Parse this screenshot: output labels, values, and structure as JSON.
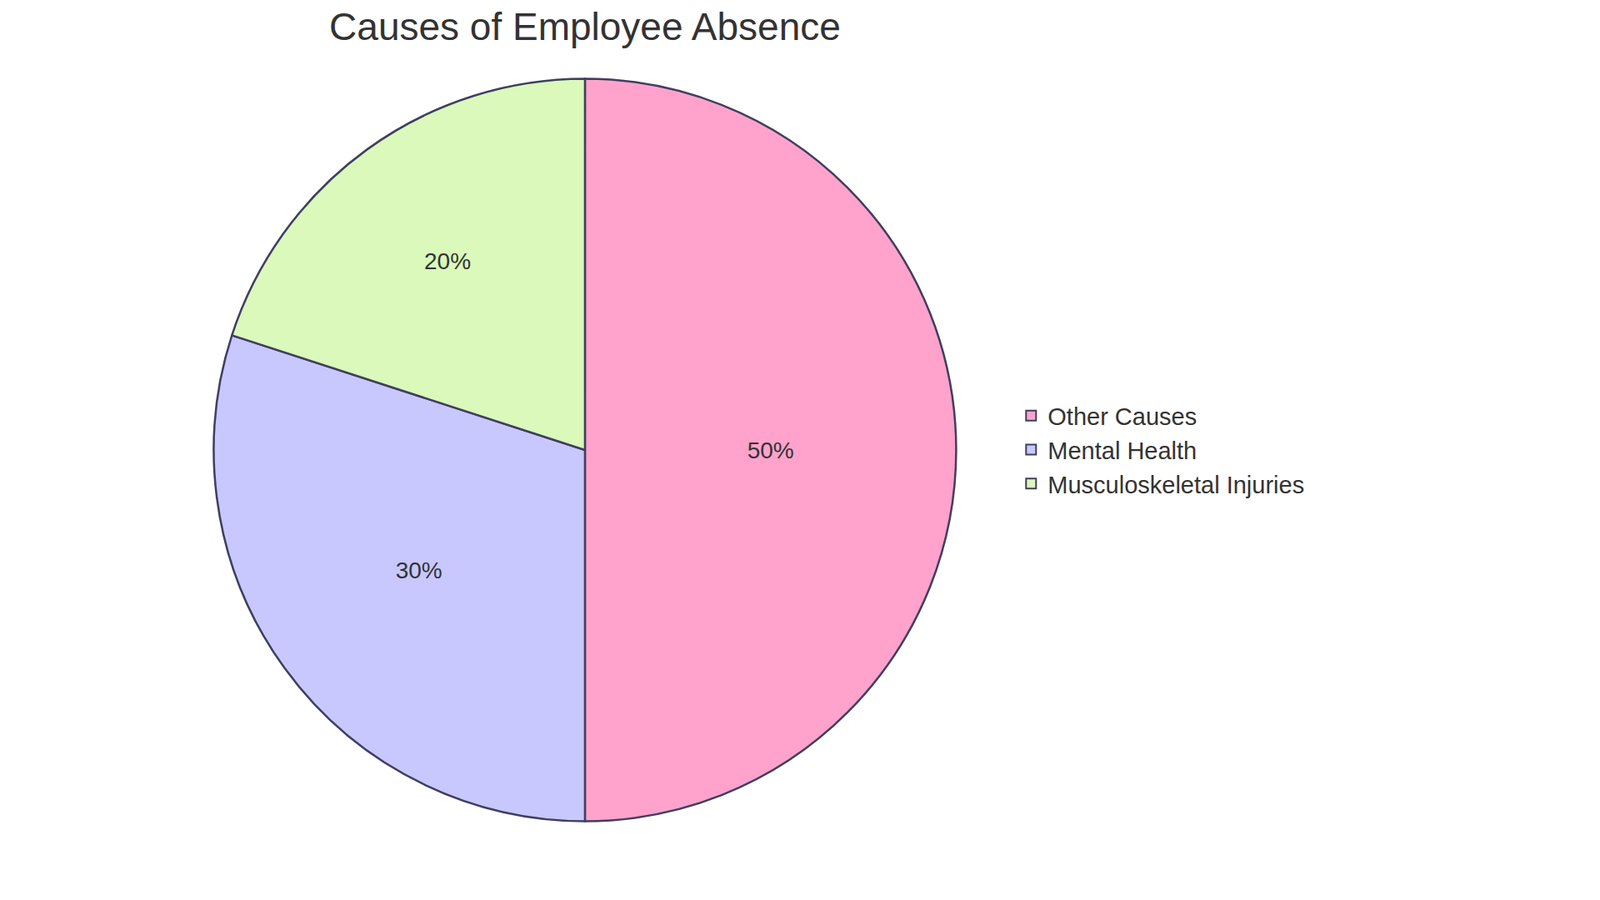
{
  "chart_data": {
    "type": "pie",
    "title": "Causes of Employee Absence",
    "categories": [
      "Other Causes",
      "Mental Health",
      "Musculoskeletal Injuries"
    ],
    "values": [
      50,
      30,
      20
    ],
    "value_labels": [
      "50%",
      "30%",
      "20%"
    ],
    "colors": [
      "#ffa3cc",
      "#c8c8ff",
      "#daf9ba"
    ],
    "data_labels": true,
    "legend": "right"
  }
}
